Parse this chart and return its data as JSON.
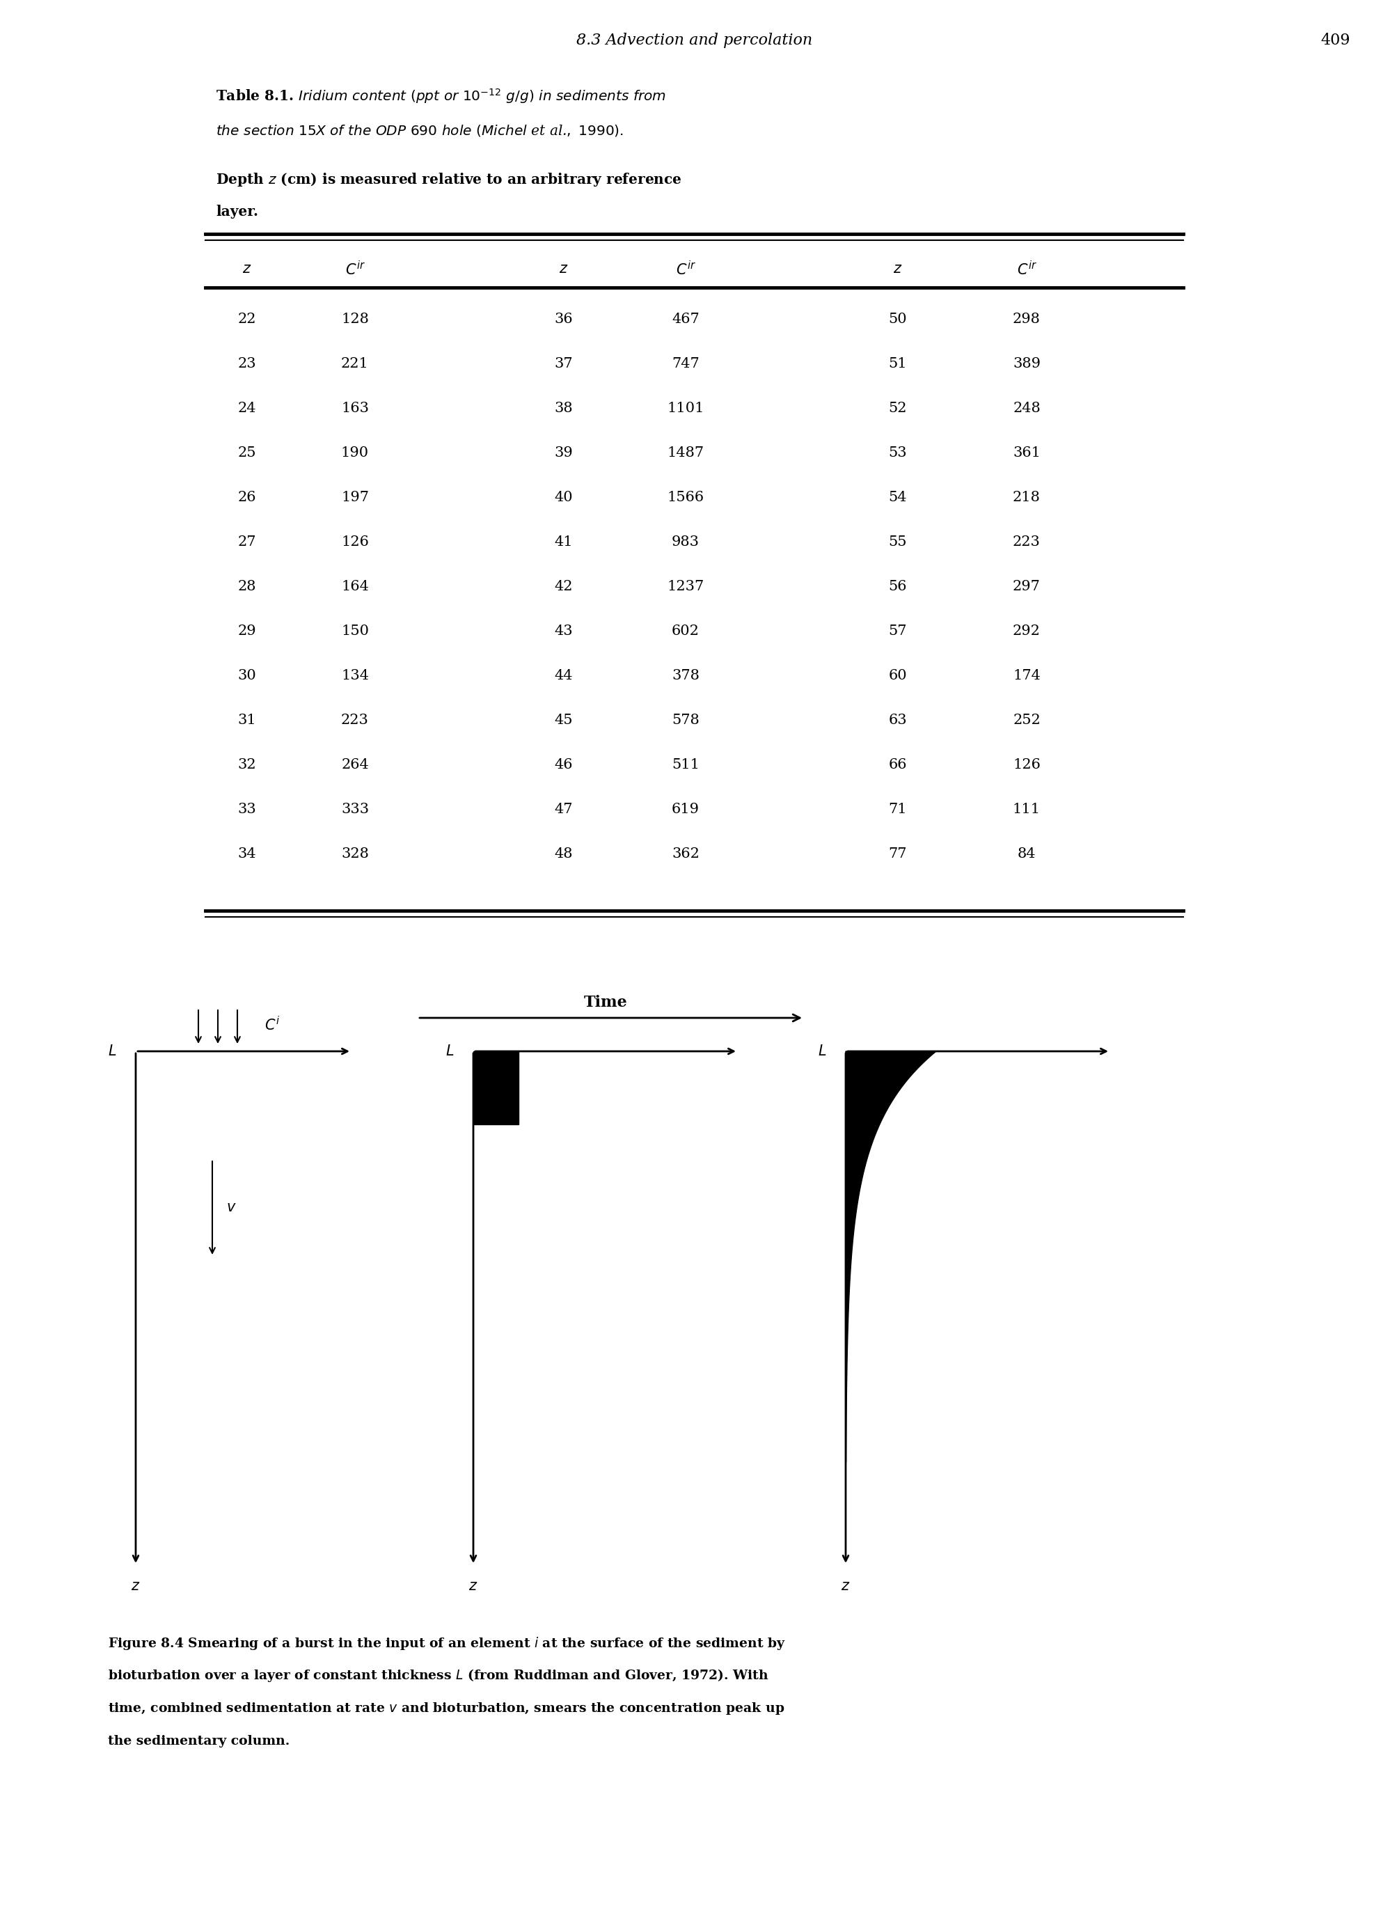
{
  "page_header": "8.3 Advection and percolation",
  "page_number": "409",
  "data_col1_z": [
    22,
    23,
    24,
    25,
    26,
    27,
    28,
    29,
    30,
    31,
    32,
    33,
    34
  ],
  "data_col1_c": [
    128,
    221,
    163,
    190,
    197,
    126,
    164,
    150,
    134,
    223,
    264,
    333,
    328
  ],
  "data_col2_z": [
    36,
    37,
    38,
    39,
    40,
    41,
    42,
    43,
    44,
    45,
    46,
    47,
    48
  ],
  "data_col2_c": [
    467,
    747,
    1101,
    1487,
    1566,
    983,
    1237,
    602,
    378,
    578,
    511,
    619,
    362
  ],
  "data_col3_z": [
    50,
    51,
    52,
    53,
    54,
    55,
    56,
    57,
    60,
    63,
    66,
    71,
    77
  ],
  "data_col3_c": [
    298,
    389,
    248,
    361,
    218,
    223,
    297,
    292,
    174,
    252,
    126,
    111,
    84
  ],
  "bg_color": "#ffffff",
  "text_color": "#000000"
}
